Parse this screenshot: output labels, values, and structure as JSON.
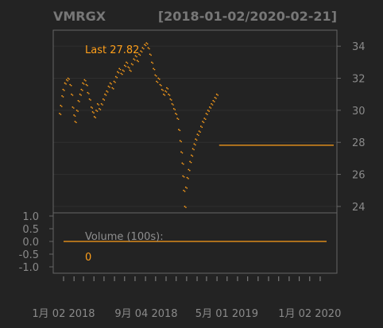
{
  "colors": {
    "background": "#232323",
    "grid": "#2f2f2f",
    "frame": "#666666",
    "axis_text": "#8a8a8a",
    "title_text": "#777777",
    "series": "#ff9f1a",
    "label_gray": "#8f8f8f"
  },
  "chart_data": [
    {
      "type": "scatter",
      "title": "VMRGX",
      "date_range": "[2018-01-02/2020-02-21]",
      "annotation": "Last 27.82",
      "last_value": 27.82,
      "ylim": [
        23.6,
        35.0
      ],
      "y_ticks": [
        24,
        26,
        28,
        30,
        32,
        34
      ],
      "x_tick_labels": [
        {
          "date": "2018-01-02",
          "label": "1月 02 2018"
        },
        {
          "date": "2018-09-04",
          "label": "9月 04 2018"
        },
        {
          "date": "2019-05-01",
          "label": "5月 01 2019"
        },
        {
          "date": "2020-01-02",
          "label": "1月 02 2020"
        }
      ],
      "x_start": "2017-12-15",
      "x_end": "2020-03-01",
      "series": [
        {
          "points": [
            [
              "2018-01-02",
              29.8
            ],
            [
              "2018-01-05",
              30.3
            ],
            [
              "2018-01-09",
              30.9
            ],
            [
              "2018-01-12",
              31.3
            ],
            [
              "2018-01-17",
              31.7
            ],
            [
              "2018-01-22",
              31.9
            ],
            [
              "2018-01-26",
              32.0
            ],
            [
              "2018-02-01",
              31.6
            ],
            [
              "2018-02-05",
              31.0
            ],
            [
              "2018-02-08",
              30.2
            ],
            [
              "2018-02-12",
              29.7
            ],
            [
              "2018-02-15",
              29.3
            ],
            [
              "2018-02-20",
              30.0
            ],
            [
              "2018-02-24",
              30.6
            ],
            [
              "2018-03-01",
              31.0
            ],
            [
              "2018-03-05",
              31.3
            ],
            [
              "2018-03-09",
              31.7
            ],
            [
              "2018-03-14",
              31.9
            ],
            [
              "2018-03-19",
              31.6
            ],
            [
              "2018-03-23",
              31.1
            ],
            [
              "2018-03-28",
              30.7
            ],
            [
              "2018-04-02",
              30.2
            ],
            [
              "2018-04-06",
              29.9
            ],
            [
              "2018-04-11",
              29.6
            ],
            [
              "2018-04-16",
              30.0
            ],
            [
              "2018-04-20",
              30.4
            ],
            [
              "2018-04-25",
              30.1
            ],
            [
              "2018-05-01",
              30.4
            ],
            [
              "2018-05-06",
              30.7
            ],
            [
              "2018-05-11",
              31.0
            ],
            [
              "2018-05-16",
              31.2
            ],
            [
              "2018-05-21",
              31.5
            ],
            [
              "2018-05-26",
              31.7
            ],
            [
              "2018-06-01",
              31.4
            ],
            [
              "2018-06-06",
              31.8
            ],
            [
              "2018-06-11",
              32.1
            ],
            [
              "2018-06-16",
              32.4
            ],
            [
              "2018-06-21",
              32.6
            ],
            [
              "2018-06-26",
              32.3
            ],
            [
              "2018-07-01",
              32.5
            ],
            [
              "2018-07-06",
              32.8
            ],
            [
              "2018-07-11",
              33.0
            ],
            [
              "2018-07-16",
              32.7
            ],
            [
              "2018-07-21",
              32.5
            ],
            [
              "2018-07-26",
              32.9
            ],
            [
              "2018-08-01",
              33.2
            ],
            [
              "2018-08-06",
              33.4
            ],
            [
              "2018-08-11",
              33.1
            ],
            [
              "2018-08-16",
              33.5
            ],
            [
              "2018-08-21",
              33.7
            ],
            [
              "2018-08-26",
              33.9
            ],
            [
              "2018-09-01",
              34.1
            ],
            [
              "2018-09-06",
              34.2
            ],
            [
              "2018-09-11",
              33.9
            ],
            [
              "2018-09-16",
              33.5
            ],
            [
              "2018-09-21",
              33.0
            ],
            [
              "2018-09-26",
              32.6
            ],
            [
              "2018-10-01",
              32.2
            ],
            [
              "2018-10-05",
              31.8
            ],
            [
              "2018-10-10",
              32.0
            ],
            [
              "2018-10-15",
              31.6
            ],
            [
              "2018-10-20",
              31.3
            ],
            [
              "2018-10-25",
              31.0
            ],
            [
              "2018-10-30",
              31.2
            ],
            [
              "2018-11-03",
              31.4
            ],
            [
              "2018-11-08",
              31.0
            ],
            [
              "2018-11-13",
              30.7
            ],
            [
              "2018-11-18",
              30.4
            ],
            [
              "2018-11-23",
              30.1
            ],
            [
              "2018-11-28",
              29.8
            ],
            [
              "2018-12-03",
              29.5
            ],
            [
              "2018-12-07",
              28.8
            ],
            [
              "2018-12-11",
              28.1
            ],
            [
              "2018-12-14",
              27.4
            ],
            [
              "2018-12-17",
              26.7
            ],
            [
              "2018-12-19",
              25.9
            ],
            [
              "2018-12-21",
              25.0
            ],
            [
              "2018-12-24",
              24.0
            ],
            [
              "2018-12-27",
              25.2
            ],
            [
              "2018-12-31",
              25.8
            ],
            [
              "2019-01-04",
              26.3
            ],
            [
              "2019-01-08",
              26.8
            ],
            [
              "2019-01-12",
              27.2
            ],
            [
              "2019-01-16",
              27.6
            ],
            [
              "2019-01-20",
              27.9
            ],
            [
              "2019-01-24",
              28.2
            ],
            [
              "2019-01-29",
              28.5
            ],
            [
              "2019-02-03",
              28.7
            ],
            [
              "2019-02-08",
              29.0
            ],
            [
              "2019-02-13",
              29.3
            ],
            [
              "2019-02-18",
              29.5
            ],
            [
              "2019-02-23",
              29.8
            ],
            [
              "2019-02-28",
              30.0
            ],
            [
              "2019-03-05",
              30.2
            ],
            [
              "2019-03-10",
              30.4
            ],
            [
              "2019-03-15",
              30.6
            ],
            [
              "2019-03-20",
              30.8
            ],
            [
              "2019-03-25",
              31.0
            ],
            [
              "2019-04-01",
              27.82
            ],
            [
              "2019-05-01",
              27.82
            ],
            [
              "2019-06-01",
              27.82
            ],
            [
              "2019-07-01",
              27.82
            ],
            [
              "2019-08-01",
              27.82
            ],
            [
              "2019-09-01",
              27.82
            ],
            [
              "2019-10-01",
              27.82
            ],
            [
              "2019-11-01",
              27.82
            ],
            [
              "2019-12-01",
              27.82
            ],
            [
              "2020-01-02",
              27.82
            ],
            [
              "2020-02-01",
              27.82
            ],
            [
              "2020-02-21",
              27.82
            ]
          ]
        }
      ]
    },
    {
      "type": "line",
      "label": "Volume (100s):",
      "last_value": 0,
      "ylim": [
        -1.0,
        1.0
      ],
      "y_ticks": [
        1.0,
        0.5,
        0.0,
        -0.5,
        -1.0
      ],
      "y_tick_labels": [
        "1.0",
        "0.5",
        "0.0",
        "-0.5",
        "-1.0"
      ],
      "x_start": "2018-01-02",
      "x_end": "2020-02-21",
      "series": [
        {
          "points": [
            [
              "2018-01-02",
              0
            ],
            [
              "2020-02-21",
              0
            ]
          ]
        }
      ]
    }
  ]
}
